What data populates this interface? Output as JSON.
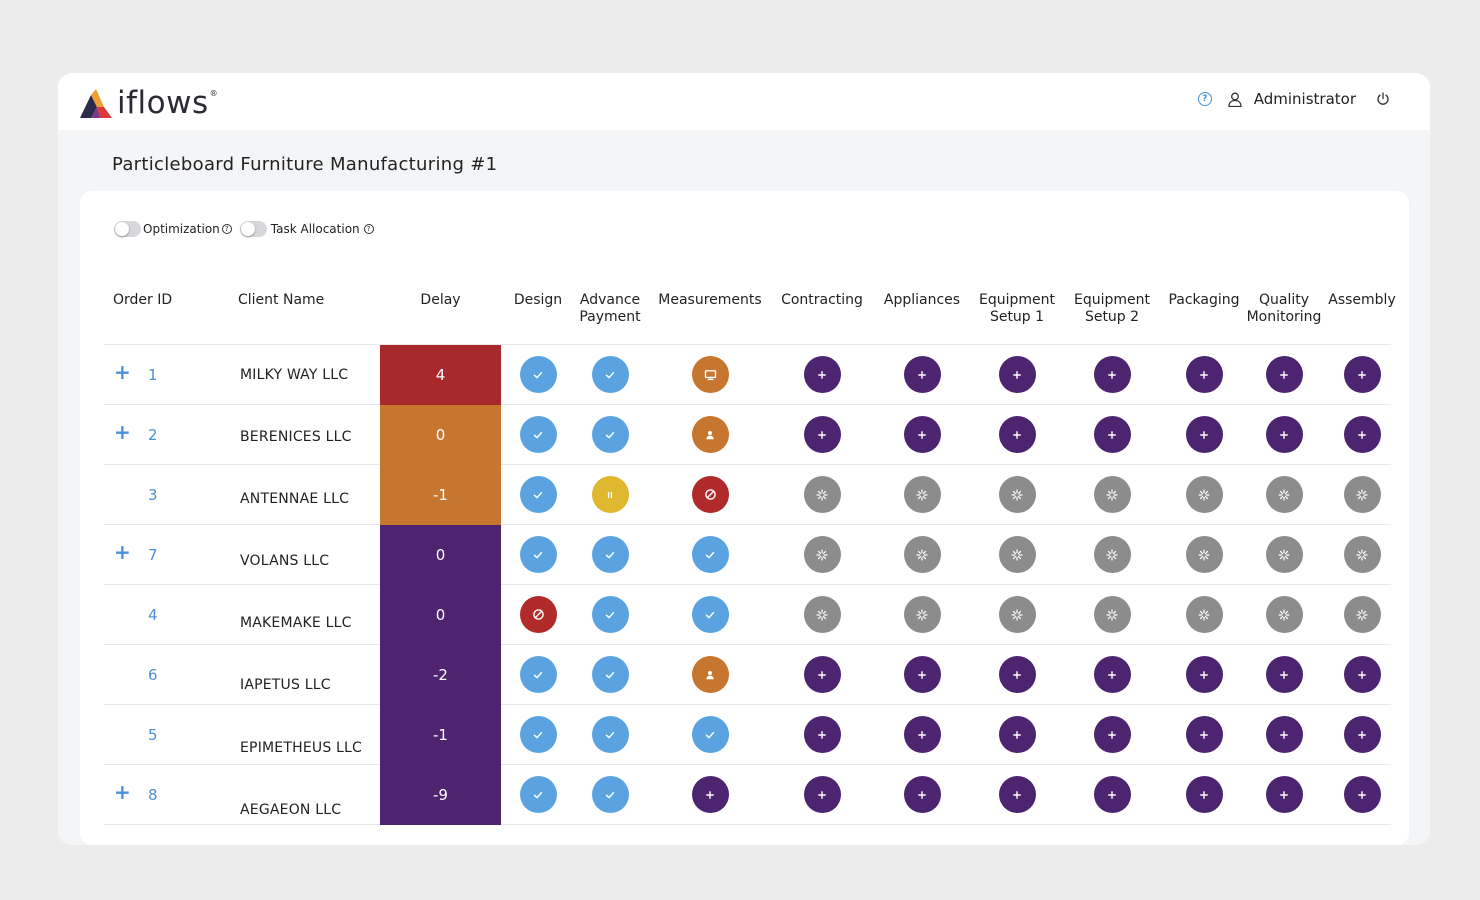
{
  "app": {
    "logo_text": "iflows",
    "logo_mark": "®",
    "help_icon": "question-circle-icon",
    "user_icon": "user-outline-icon",
    "user_name": "Administrator",
    "power_icon": "power-icon"
  },
  "page": {
    "title": "Particleboard Furniture Manufacturing #1"
  },
  "toggles": [
    {
      "label": "Optimization",
      "on": false
    },
    {
      "label": "Task Allocation",
      "on": false
    }
  ],
  "columns": {
    "order_id": "Order ID",
    "client": "Client Name",
    "delay": "Delay",
    "stages": [
      {
        "label": "Design"
      },
      {
        "label": "Advance Payment"
      },
      {
        "label": "Measurements"
      },
      {
        "label": "Contracting"
      },
      {
        "label": "Appliances"
      },
      {
        "label": "Equipment Setup 1"
      },
      {
        "label": "Equipment Setup 2"
      },
      {
        "label": "Packaging"
      },
      {
        "label": "Quality Monitoring"
      },
      {
        "label": "Assembly"
      }
    ]
  },
  "status_colors": {
    "done": "#5aa3e0",
    "pending": "#4d2470",
    "waiting": "#8c8c8c",
    "in_progress": "#c6762f",
    "blocked": "#b02a2a",
    "paused": "#e0b830"
  },
  "delay_colors": {
    "red": "#a9282c",
    "orange": "#c6762f",
    "purple": "#4e236f"
  },
  "rows": [
    {
      "expandable": true,
      "order_id": "1",
      "client": "MILKY WAY LLC",
      "delay": "4",
      "delay_color": "red",
      "stages": [
        "done",
        "done",
        "in_progress:monitor",
        "pending",
        "pending",
        "pending",
        "pending",
        "pending",
        "pending",
        "pending"
      ]
    },
    {
      "expandable": true,
      "order_id": "2",
      "client": "BERENICES LLC",
      "delay": "0",
      "delay_color": "orange",
      "stages": [
        "done",
        "done",
        "in_progress:person",
        "pending",
        "pending",
        "pending",
        "pending",
        "pending",
        "pending",
        "pending"
      ]
    },
    {
      "expandable": false,
      "order_id": "3",
      "client": "ANTENNAE LLC",
      "delay": "-1",
      "delay_color": "orange",
      "stages": [
        "done",
        "paused",
        "blocked",
        "waiting",
        "waiting",
        "waiting",
        "waiting",
        "waiting",
        "waiting",
        "waiting"
      ]
    },
    {
      "expandable": true,
      "order_id": "7",
      "client": "VOLANS LLC",
      "delay": "0",
      "delay_color": "purple",
      "stages": [
        "done",
        "done",
        "done",
        "waiting",
        "waiting",
        "waiting",
        "waiting",
        "waiting",
        "waiting",
        "waiting"
      ]
    },
    {
      "expandable": false,
      "order_id": "4",
      "client": "MAKEMAKE LLC",
      "delay": "0",
      "delay_color": "purple",
      "stages": [
        "blocked",
        "done",
        "done",
        "waiting",
        "waiting",
        "waiting",
        "waiting",
        "waiting",
        "waiting",
        "waiting"
      ]
    },
    {
      "expandable": false,
      "order_id": "6",
      "client": "IAPETUS LLC",
      "delay": "-2",
      "delay_color": "purple",
      "stages": [
        "done",
        "done",
        "in_progress:person",
        "pending",
        "pending",
        "pending",
        "pending",
        "pending",
        "pending",
        "pending"
      ]
    },
    {
      "expandable": false,
      "order_id": "5",
      "client": "EPIMETHEUS LLC",
      "delay": "-1",
      "delay_color": "purple",
      "stages": [
        "done",
        "done",
        "done",
        "pending",
        "pending",
        "pending",
        "pending",
        "pending",
        "pending",
        "pending"
      ]
    },
    {
      "expandable": true,
      "order_id": "8",
      "client": "AEGAEON LLC",
      "delay": "-9",
      "delay_color": "purple",
      "stages": [
        "done",
        "done",
        "pending",
        "pending",
        "pending",
        "pending",
        "pending",
        "pending",
        "pending",
        "pending"
      ]
    }
  ]
}
